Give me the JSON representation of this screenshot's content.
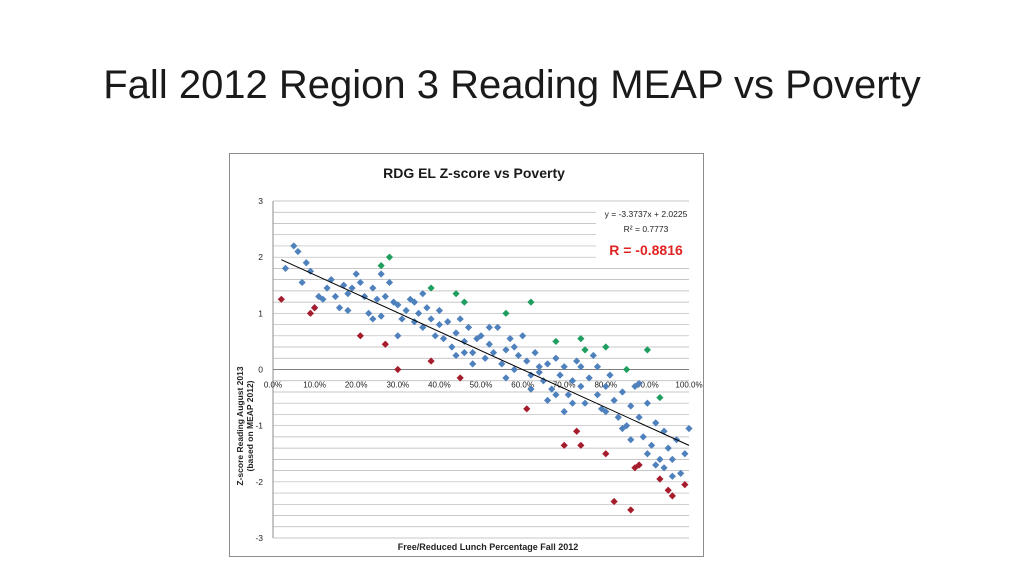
{
  "slide": {
    "title": "Fall 2012 Region 3 Reading MEAP vs Poverty"
  },
  "colors": {
    "blue": "#4f81bd",
    "green": "#1f9e5f",
    "red": "#a51d2d",
    "trend": "#000000",
    "r_text": "#e02424"
  },
  "chart_data": {
    "type": "scatter",
    "title": "RDG EL Z-score vs Poverty",
    "xlabel": "Free/Reduced Lunch Percentage Fall 2012",
    "ylabel_line1": "Z-score Reading August 2013",
    "ylabel_line2": "(based on MEAP 2012)",
    "xlim": [
      0,
      1
    ],
    "ylim": [
      -3,
      3
    ],
    "xticks": [
      "0.0%",
      "10.0%",
      "20.0%",
      "30.0%",
      "40.0%",
      "50.0%",
      "60.0%",
      "70.0%",
      "80.0%",
      "90.0%",
      "100.0%"
    ],
    "yticks": [
      "3",
      "2",
      "1",
      "0",
      "-1",
      "-2",
      "-3"
    ],
    "grid": true,
    "trendline": {
      "equation": "y = -3.3737x + 2.0225",
      "r2": "R² = 0.7773",
      "slope": -3.3737,
      "intercept": 2.0225
    },
    "r_label": "R = -0.8816",
    "series": [
      {
        "color": "blue",
        "points": [
          [
            0.03,
            1.8
          ],
          [
            0.05,
            2.2
          ],
          [
            0.06,
            2.1
          ],
          [
            0.07,
            1.55
          ],
          [
            0.08,
            1.9
          ],
          [
            0.09,
            1.75
          ],
          [
            0.1,
            1.1
          ],
          [
            0.11,
            1.3
          ],
          [
            0.13,
            1.45
          ],
          [
            0.14,
            1.6
          ],
          [
            0.15,
            1.3
          ],
          [
            0.16,
            1.1
          ],
          [
            0.17,
            1.5
          ],
          [
            0.18,
            1.05
          ],
          [
            0.19,
            1.45
          ],
          [
            0.2,
            1.7
          ],
          [
            0.21,
            1.55
          ],
          [
            0.22,
            1.3
          ],
          [
            0.23,
            1.0
          ],
          [
            0.24,
            1.45
          ],
          [
            0.25,
            1.25
          ],
          [
            0.26,
            0.95
          ],
          [
            0.27,
            1.3
          ],
          [
            0.28,
            1.55
          ],
          [
            0.29,
            1.2
          ],
          [
            0.3,
            1.15
          ],
          [
            0.31,
            0.9
          ],
          [
            0.32,
            1.05
          ],
          [
            0.33,
            1.25
          ],
          [
            0.34,
            0.85
          ],
          [
            0.35,
            1.0
          ],
          [
            0.36,
            0.75
          ],
          [
            0.37,
            1.1
          ],
          [
            0.38,
            0.9
          ],
          [
            0.39,
            0.6
          ],
          [
            0.4,
            0.8
          ],
          [
            0.41,
            0.55
          ],
          [
            0.42,
            0.85
          ],
          [
            0.43,
            0.4
          ],
          [
            0.44,
            0.65
          ],
          [
            0.45,
            0.9
          ],
          [
            0.46,
            0.5
          ],
          [
            0.47,
            0.75
          ],
          [
            0.48,
            0.3
          ],
          [
            0.49,
            0.55
          ],
          [
            0.5,
            0.6
          ],
          [
            0.51,
            0.2
          ],
          [
            0.52,
            0.45
          ],
          [
            0.53,
            0.3
          ],
          [
            0.54,
            0.75
          ],
          [
            0.55,
            0.1
          ],
          [
            0.56,
            0.35
          ],
          [
            0.57,
            0.55
          ],
          [
            0.58,
            0.0
          ],
          [
            0.59,
            0.25
          ],
          [
            0.6,
            0.6
          ],
          [
            0.61,
            0.15
          ],
          [
            0.62,
            -0.1
          ],
          [
            0.63,
            0.3
          ],
          [
            0.64,
            0.05
          ],
          [
            0.65,
            -0.2
          ],
          [
            0.66,
            0.1
          ],
          [
            0.67,
            -0.35
          ],
          [
            0.68,
            0.2
          ],
          [
            0.69,
            -0.1
          ],
          [
            0.7,
            0.05
          ],
          [
            0.71,
            -0.45
          ],
          [
            0.72,
            -0.2
          ],
          [
            0.73,
            0.15
          ],
          [
            0.74,
            -0.3
          ],
          [
            0.75,
            -0.6
          ],
          [
            0.76,
            -0.15
          ],
          [
            0.77,
            0.25
          ],
          [
            0.78,
            -0.45
          ],
          [
            0.79,
            -0.7
          ],
          [
            0.8,
            -0.3
          ],
          [
            0.81,
            -0.1
          ],
          [
            0.82,
            -0.55
          ],
          [
            0.83,
            -0.85
          ],
          [
            0.84,
            -0.4
          ],
          [
            0.85,
            -1.0
          ],
          [
            0.86,
            -0.65
          ],
          [
            0.87,
            -0.3
          ],
          [
            0.88,
            -0.85
          ],
          [
            0.89,
            -1.2
          ],
          [
            0.9,
            -0.6
          ],
          [
            0.91,
            -1.35
          ],
          [
            0.92,
            -0.95
          ],
          [
            0.93,
            -1.6
          ],
          [
            0.94,
            -1.1
          ],
          [
            0.95,
            -1.4
          ],
          [
            0.96,
            -1.9
          ],
          [
            0.97,
            -1.25
          ],
          [
            0.98,
            -1.85
          ],
          [
            0.99,
            -1.5
          ],
          [
            1.0,
            -1.05
          ],
          [
            0.12,
            1.25
          ],
          [
            0.24,
            0.9
          ],
          [
            0.34,
            1.2
          ],
          [
            0.44,
            0.25
          ],
          [
            0.52,
            0.75
          ],
          [
            0.58,
            0.4
          ],
          [
            0.66,
            -0.55
          ],
          [
            0.74,
            0.05
          ],
          [
            0.8,
            -0.75
          ],
          [
            0.86,
            -1.25
          ],
          [
            0.92,
            -1.7
          ],
          [
            0.96,
            -1.6
          ],
          [
            0.4,
            1.05
          ],
          [
            0.3,
            0.6
          ],
          [
            0.62,
            -0.35
          ],
          [
            0.7,
            -0.75
          ],
          [
            0.88,
            -0.25
          ],
          [
            0.56,
            -0.15
          ],
          [
            0.46,
            0.3
          ],
          [
            0.36,
            1.35
          ],
          [
            0.26,
            1.7
          ],
          [
            0.18,
            1.35
          ],
          [
            0.48,
            0.1
          ],
          [
            0.68,
            -0.45
          ],
          [
            0.78,
            0.05
          ],
          [
            0.84,
            -1.05
          ],
          [
            0.9,
            -1.5
          ],
          [
            0.94,
            -1.75
          ],
          [
            0.72,
            -0.6
          ],
          [
            0.64,
            -0.05
          ]
        ]
      },
      {
        "color": "green",
        "points": [
          [
            0.26,
            1.85
          ],
          [
            0.28,
            2.0
          ],
          [
            0.38,
            1.45
          ],
          [
            0.44,
            1.35
          ],
          [
            0.46,
            1.2
          ],
          [
            0.56,
            1.0
          ],
          [
            0.62,
            1.2
          ],
          [
            0.68,
            0.5
          ],
          [
            0.74,
            0.55
          ],
          [
            0.75,
            0.35
          ],
          [
            0.8,
            0.4
          ],
          [
            0.85,
            0.0
          ],
          [
            0.9,
            0.35
          ],
          [
            0.93,
            -0.5
          ]
        ]
      },
      {
        "color": "red",
        "points": [
          [
            0.02,
            1.25
          ],
          [
            0.09,
            1.0
          ],
          [
            0.1,
            1.1
          ],
          [
            0.21,
            0.6
          ],
          [
            0.27,
            0.45
          ],
          [
            0.3,
            0.0
          ],
          [
            0.38,
            0.15
          ],
          [
            0.45,
            -0.15
          ],
          [
            0.61,
            -0.7
          ],
          [
            0.7,
            -1.35
          ],
          [
            0.73,
            -1.1
          ],
          [
            0.74,
            -1.35
          ],
          [
            0.8,
            -1.5
          ],
          [
            0.82,
            -2.35
          ],
          [
            0.86,
            -2.5
          ],
          [
            0.87,
            -1.75
          ],
          [
            0.88,
            -1.7
          ],
          [
            0.93,
            -1.95
          ],
          [
            0.95,
            -2.15
          ],
          [
            0.96,
            -2.25
          ],
          [
            0.99,
            -2.05
          ]
        ]
      }
    ]
  }
}
